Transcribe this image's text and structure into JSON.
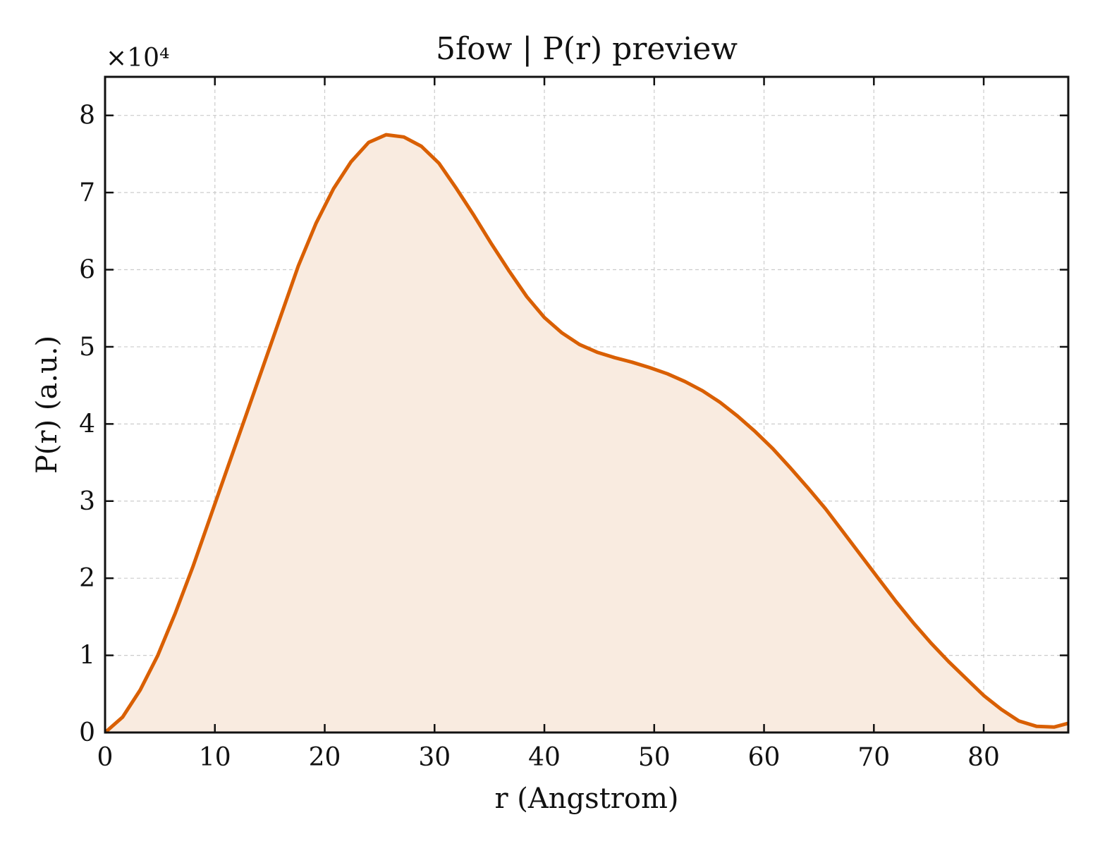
{
  "chart_data": {
    "type": "area",
    "title": "5fow | P(r) preview",
    "xlabel": "r (Angstrom)",
    "ylabel": "P(r) (a.u.)",
    "y_multiplier_label": "×10⁴",
    "xlim": [
      0,
      87.7
    ],
    "ylim": [
      0,
      8.5
    ],
    "x_ticks": [
      0,
      10,
      20,
      30,
      40,
      50,
      60,
      70,
      80
    ],
    "y_ticks": [
      0,
      1,
      2,
      3,
      4,
      5,
      6,
      7,
      8
    ],
    "grid": true,
    "line_color": "#d95f02",
    "fill_color": "#f9ebe0",
    "series": [
      {
        "x": [
          0,
          1.6,
          3.2,
          4.8,
          6.4,
          8.0,
          9.6,
          11.2,
          12.8,
          14.4,
          16.0,
          17.6,
          19.2,
          20.8,
          22.4,
          24.0,
          25.6,
          27.2,
          28.8,
          30.4,
          32.0,
          33.6,
          35.2,
          36.8,
          38.4,
          40.0,
          41.6,
          43.2,
          44.8,
          46.4,
          48.0,
          49.6,
          51.2,
          52.8,
          54.4,
          56.0,
          57.6,
          59.2,
          60.8,
          62.4,
          64.0,
          65.6,
          67.2,
          68.8,
          70.4,
          72.0,
          73.6,
          75.2,
          76.8,
          78.4,
          80.0,
          81.6,
          83.2,
          84.8,
          86.4,
          87.7
        ],
        "y": [
          0.0,
          0.2,
          0.55,
          1.0,
          1.55,
          2.15,
          2.8,
          3.45,
          4.1,
          4.75,
          5.4,
          6.05,
          6.6,
          7.05,
          7.4,
          7.65,
          7.75,
          7.72,
          7.6,
          7.38,
          7.05,
          6.7,
          6.33,
          5.98,
          5.65,
          5.38,
          5.18,
          5.03,
          4.93,
          4.86,
          4.8,
          4.73,
          4.65,
          4.55,
          4.43,
          4.28,
          4.1,
          3.9,
          3.68,
          3.43,
          3.17,
          2.9,
          2.6,
          2.3,
          2.0,
          1.7,
          1.42,
          1.16,
          0.92,
          0.7,
          0.48,
          0.3,
          0.15,
          0.08,
          0.07,
          0.12
        ]
      }
    ]
  }
}
